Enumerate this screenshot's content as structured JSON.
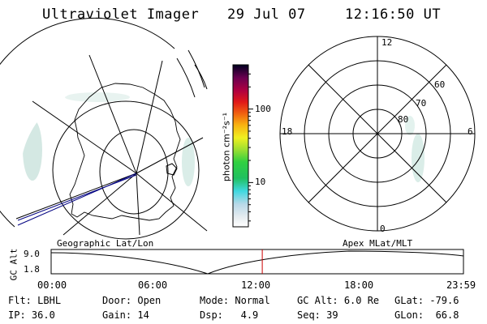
{
  "header": {
    "title": "Ultraviolet Imager",
    "date": "29 Jul 07",
    "time": "12:16:50 UT"
  },
  "colorbar": {
    "unit_label": "photon cm⁻²s⁻¹",
    "ticks": [
      {
        "value": 10,
        "label": "10"
      },
      {
        "value": 100,
        "label": "100"
      }
    ],
    "min": 2.5,
    "max": 400,
    "scale": "log"
  },
  "polar_plot": {
    "lat_labels": [
      "60",
      "70",
      "80"
    ],
    "mlt_labels": {
      "top": "12",
      "left": "18",
      "right": "6",
      "bottom": "0"
    }
  },
  "timeline": {
    "left_title": "Geographic Lat/Lon",
    "right_title": "Apex MLat/MLT",
    "y_axis_label": "GC Alt",
    "y_ticks": [
      "9.0",
      "1.8"
    ],
    "x_ticks": [
      "00:00",
      "06:00",
      "12:00",
      "18:00",
      "23:59"
    ],
    "current_time_hours": 12.28
  },
  "status": {
    "row1": [
      {
        "label": "Flt:",
        "value": "LBHL"
      },
      {
        "label": "Door:",
        "value": "Open"
      },
      {
        "label": "Mode:",
        "value": "Normal"
      },
      {
        "label": "GC Alt:",
        "value": "6.0 Re"
      },
      {
        "label": "GLat:",
        "value": "-79.6"
      }
    ],
    "row2": [
      {
        "label": "IP:",
        "value": "36.0"
      },
      {
        "label": "Gain:",
        "value": "14"
      },
      {
        "label": "Dsp:",
        "value": "4.9"
      },
      {
        "label": "Seq:",
        "value": "39"
      },
      {
        "label": "GLon:",
        "value": "66.8"
      }
    ]
  },
  "colors": {
    "orbit": "#000080",
    "time_marker": "#cc0000",
    "glow": "#cfe6e0"
  }
}
